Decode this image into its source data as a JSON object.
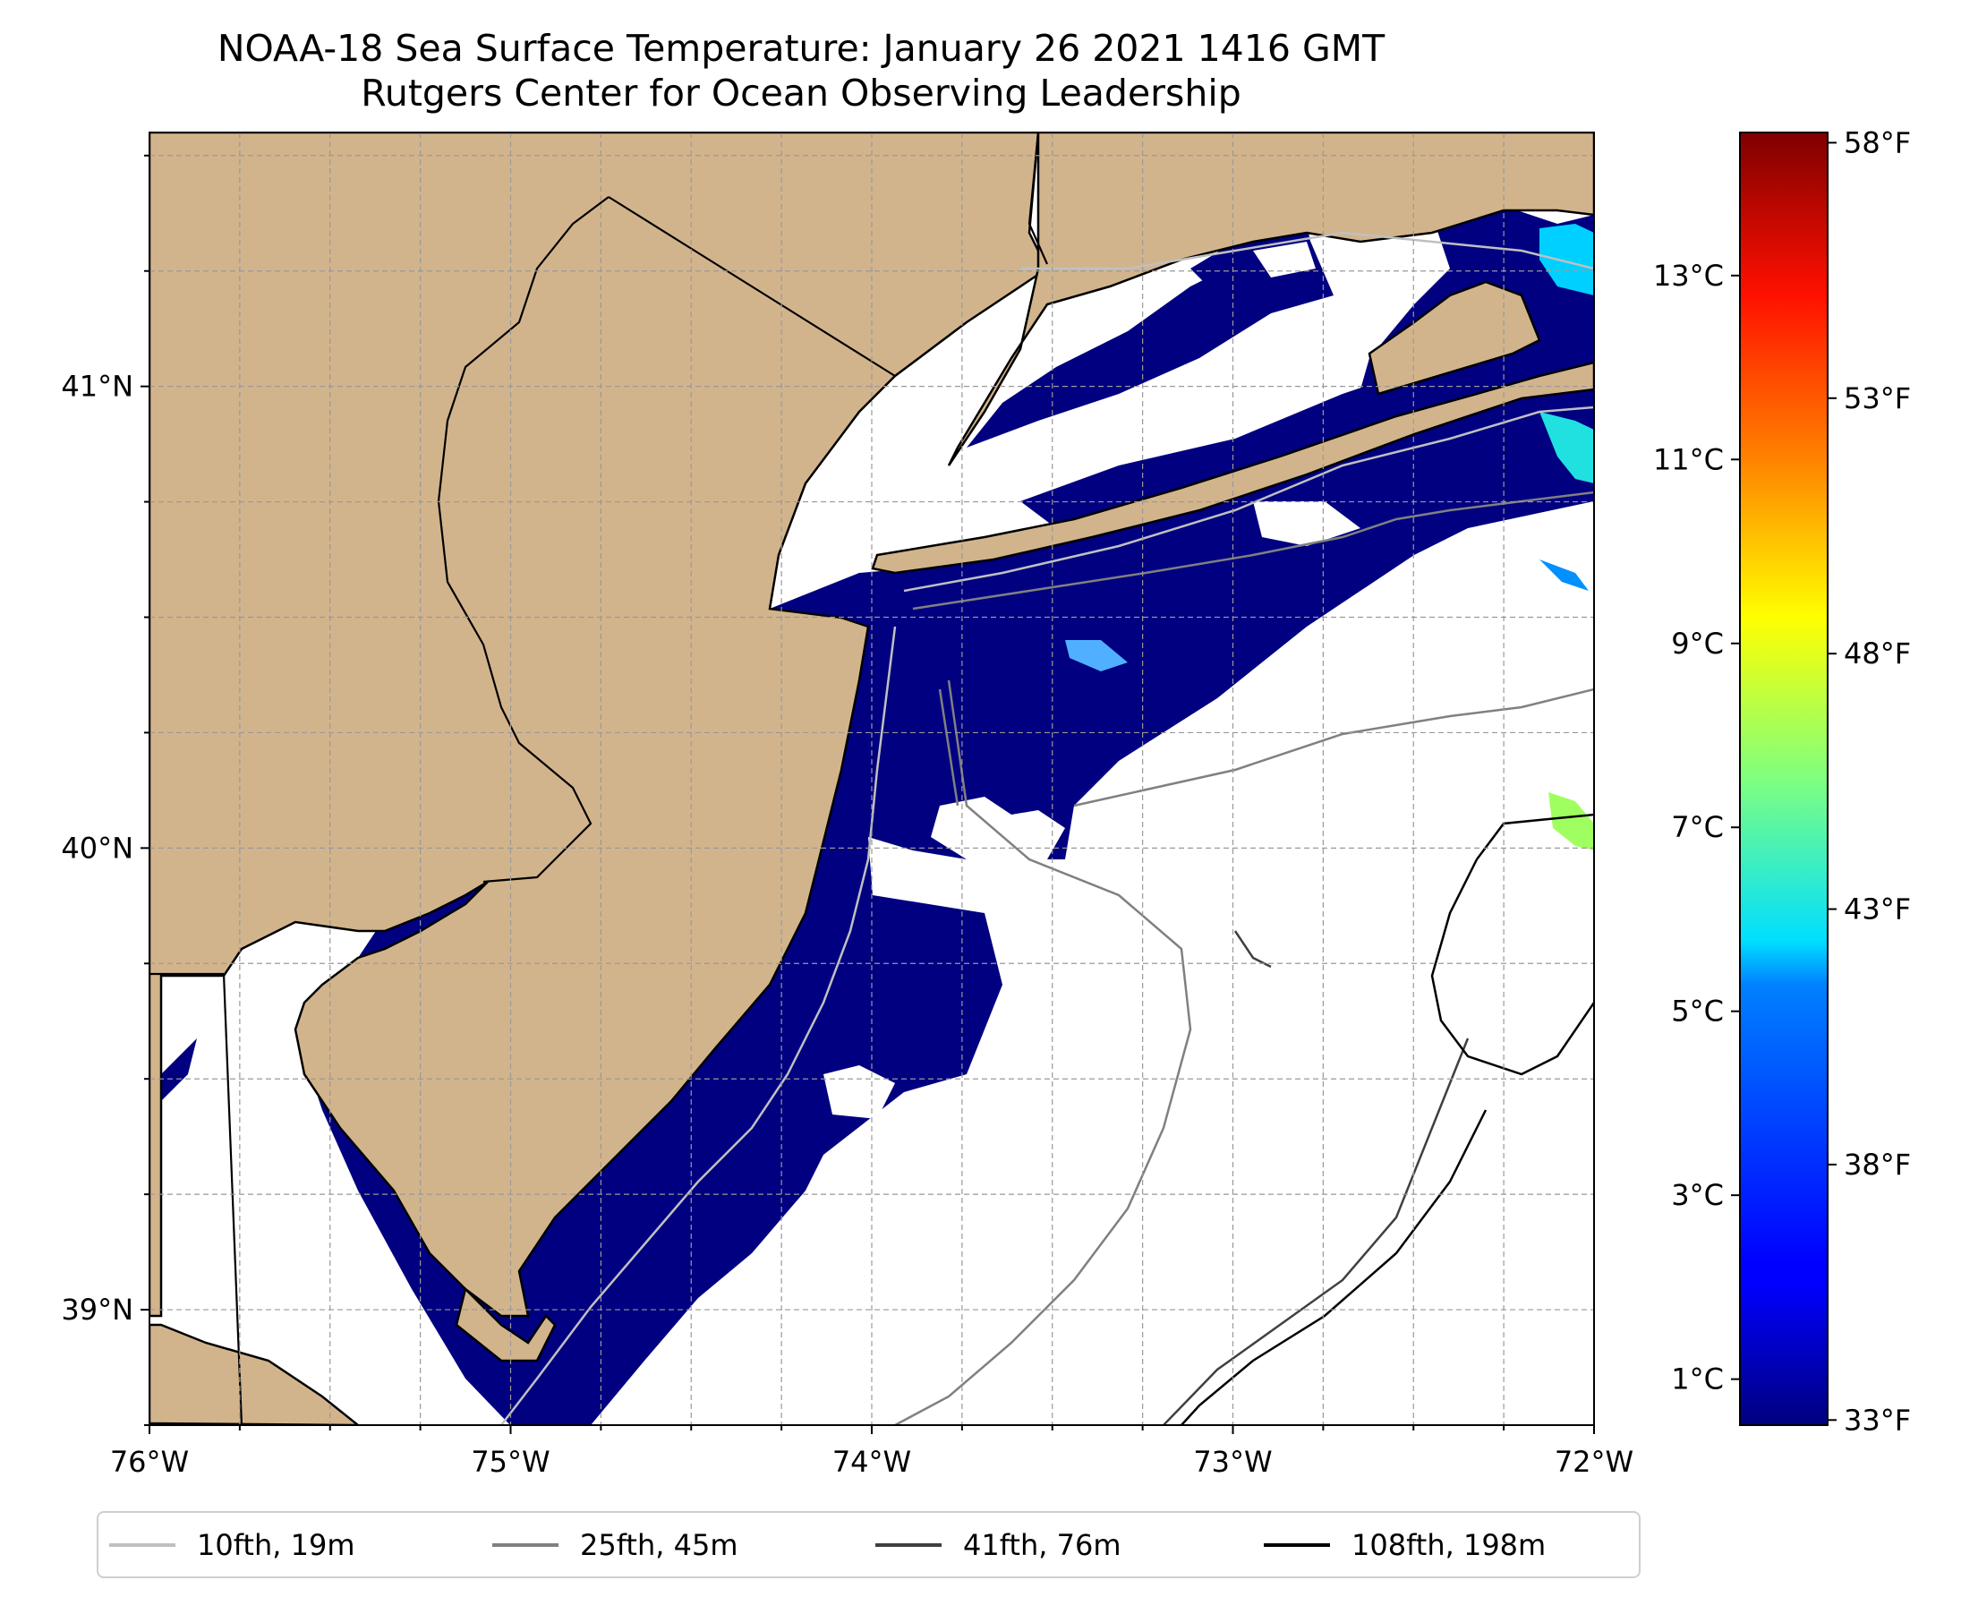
{
  "title": "NOAA-18 Sea Surface Temperature: January 26 2021 1416 GMT",
  "subtitle": "Rutgers Center for Ocean Observing Leadership",
  "map": {
    "extent": {
      "lon_min": -76.0,
      "lon_max": -72.0,
      "lat_min": 38.75,
      "lat_max": 41.55
    },
    "x_ticks": [
      {
        "value": -76,
        "label": "76°W"
      },
      {
        "value": -75,
        "label": "75°W"
      },
      {
        "value": -74,
        "label": "74°W"
      },
      {
        "value": -73,
        "label": "73°W"
      },
      {
        "value": -72,
        "label": "72°W"
      }
    ],
    "y_ticks": [
      {
        "value": 41,
        "label": "41°N"
      },
      {
        "value": 40,
        "label": "40°N"
      },
      {
        "value": 39,
        "label": "39°N"
      }
    ],
    "grid": true,
    "land_color": "#d2b48c",
    "cold_water_color": "#000080"
  },
  "colorbar": {
    "colormap": "jet",
    "celsius_ticks": [
      {
        "value": 1,
        "label": "1°C"
      },
      {
        "value": 3,
        "label": "3°C"
      },
      {
        "value": 5,
        "label": "5°C"
      },
      {
        "value": 7,
        "label": "7°C"
      },
      {
        "value": 9,
        "label": "9°C"
      },
      {
        "value": 11,
        "label": "11°C"
      },
      {
        "value": 13,
        "label": "13°C"
      }
    ],
    "fahrenheit_ticks": [
      {
        "value": 33,
        "label": "33°F"
      },
      {
        "value": 38,
        "label": "38°F"
      },
      {
        "value": 43,
        "label": "43°F"
      },
      {
        "value": 48,
        "label": "48°F"
      },
      {
        "value": 53,
        "label": "53°F"
      },
      {
        "value": 58,
        "label": "58°F"
      }
    ],
    "range_f": [
      32.9,
      58.2
    ]
  },
  "legend": [
    {
      "label": "10fth, 19m",
      "color": "#c0c0c0"
    },
    {
      "label": "25fth, 45m",
      "color": "#808080"
    },
    {
      "label": "41fth, 76m",
      "color": "#404040"
    },
    {
      "label": "108fth, 198m",
      "color": "#000000"
    }
  ]
}
